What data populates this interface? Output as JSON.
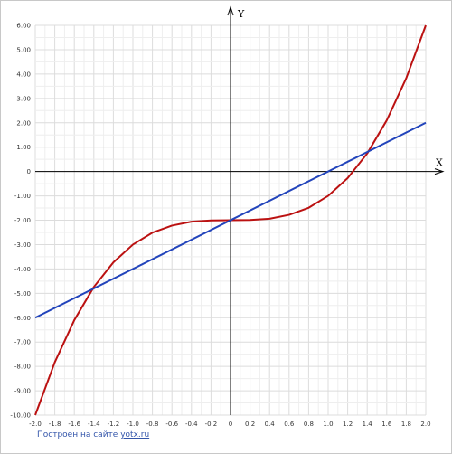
{
  "chart_data": {
    "type": "line",
    "xlabel": "X",
    "ylabel": "Y",
    "xlim": [
      -2.0,
      2.0
    ],
    "ylim": [
      -10.0,
      6.0
    ],
    "x_ticks": [
      -2.0,
      -1.8,
      -1.6,
      -1.4,
      -1.2,
      -1.0,
      -0.8,
      -0.6,
      -0.4,
      -0.2,
      0,
      0.2,
      0.4,
      0.6,
      0.8,
      1.0,
      1.2,
      1.4,
      1.6,
      1.8,
      2.0
    ],
    "x_tick_labels": [
      "-2.0",
      "-1.8",
      "-1.6",
      "-1.4",
      "-1.2",
      "-1.0",
      "-0.8",
      "-0.6",
      "-0.4",
      "-0.2",
      "0",
      "0.2",
      "0.4",
      "0.6",
      "0.8",
      "1.0",
      "1.2",
      "1.4",
      "1.6",
      "1.8",
      "2.0"
    ],
    "y_ticks": [
      6,
      5,
      4,
      3,
      2,
      1,
      0,
      -1,
      -2,
      -3,
      -4,
      -5,
      -6,
      -7,
      -8,
      -9,
      -10
    ],
    "y_tick_labels": [
      "6.00",
      "5.00",
      "4.00",
      "3.00",
      "2.00",
      "1.00",
      "0",
      "-1.00",
      "-2.00",
      "-3.00",
      "-4.00",
      "-5.00",
      "-6.00",
      "-7.00",
      "-8.00",
      "-9.00",
      "-10.00"
    ],
    "grid": true,
    "series": [
      {
        "color": "#bb1111",
        "x": [
          -2.0,
          -1.8,
          -1.6,
          -1.4,
          -1.2,
          -1.0,
          -0.8,
          -0.6,
          -0.4,
          -0.2,
          0,
          0.2,
          0.4,
          0.6,
          0.8,
          1.0,
          1.2,
          1.4,
          1.6,
          1.8,
          2.0
        ],
        "y": [
          -10.0,
          -7.83,
          -6.1,
          -4.74,
          -3.73,
          -3.0,
          -2.51,
          -2.22,
          -2.06,
          -2.01,
          -2.0,
          -1.99,
          -1.94,
          -1.78,
          -1.49,
          -1.0,
          -0.27,
          0.74,
          2.1,
          3.83,
          6.0
        ]
      },
      {
        "color": "#2244bb",
        "x": [
          -2.0,
          2.0
        ],
        "y": [
          -6.0,
          2.0
        ]
      }
    ]
  },
  "footer": {
    "text": "Построен на сайте",
    "link": "yotx.ru"
  }
}
